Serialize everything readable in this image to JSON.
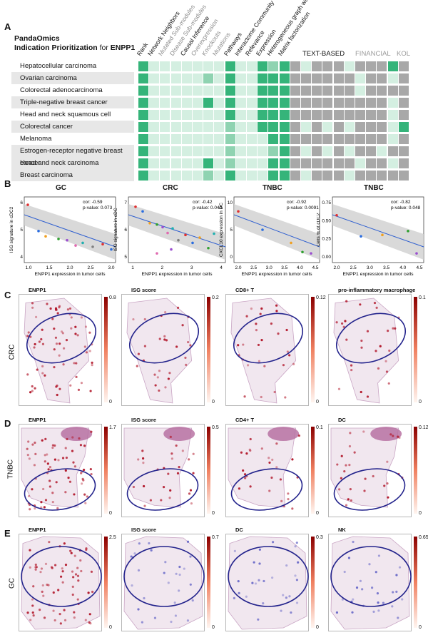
{
  "panelA": {
    "letter": "A",
    "title_line1": "PandaOmics",
    "title_line2_prefix": "Indication Prioritization",
    "title_line2_mid": " for ",
    "title_line2_gene": "ENPP1",
    "columns": [
      {
        "label": "Rank",
        "grey": false
      },
      {
        "label": "Network Neighbors",
        "grey": false
      },
      {
        "label": "Mutated Sub-modules",
        "grey": true
      },
      {
        "label": "Disease Sub-modules",
        "grey": true
      },
      {
        "label": "Causal Inference",
        "grey": false
      },
      {
        "label": "Overexpression",
        "grey": true
      },
      {
        "label": "Knockouts",
        "grey": true
      },
      {
        "label": "Mutations",
        "grey": true
      },
      {
        "label": "Pathways",
        "grey": false
      },
      {
        "label": "Interactome Community",
        "grey": false
      },
      {
        "label": "Relevance",
        "grey": false
      },
      {
        "label": "Expression",
        "grey": false
      },
      {
        "label": "Heterogeneous graph walk",
        "grey": false
      },
      {
        "label": "Matrix factorization",
        "grey": false
      }
    ],
    "groups": [
      {
        "label": "TEXT-BASED",
        "grey": false
      },
      {
        "label": "FINANCIAL",
        "grey": true
      },
      {
        "label": "KOL",
        "grey": true
      }
    ],
    "rows": [
      "Hepatocellular carcinoma",
      "Ovarian carcinoma",
      "Colorectal adenocarcinoma",
      "Triple-negative breast cancer",
      "Head and neck squamous cell carcinoma",
      "Colorectal cancer",
      "Melanoma",
      "Estrogen-receptor negative breast cancer",
      "Head and neck carcinoma",
      "Breast carcinoma"
    ],
    "cell_levels": [
      [
        3,
        1,
        1,
        1,
        1,
        1,
        1,
        1,
        3,
        1,
        1,
        3,
        2,
        3,
        0,
        1,
        0,
        0,
        0,
        1,
        0,
        0,
        0,
        3,
        0
      ],
      [
        3,
        1,
        1,
        1,
        1,
        1,
        2,
        1,
        3,
        1,
        1,
        3,
        3,
        3,
        0,
        0,
        0,
        0,
        0,
        0,
        1,
        0,
        0,
        1,
        0
      ],
      [
        3,
        1,
        1,
        1,
        1,
        1,
        1,
        1,
        3,
        1,
        1,
        3,
        3,
        3,
        0,
        0,
        0,
        0,
        0,
        0,
        1,
        0,
        0,
        0,
        0
      ],
      [
        3,
        1,
        1,
        1,
        1,
        1,
        3,
        1,
        3,
        1,
        1,
        3,
        3,
        3,
        0,
        0,
        0,
        0,
        0,
        0,
        0,
        0,
        0,
        1,
        0
      ],
      [
        3,
        1,
        1,
        1,
        1,
        1,
        1,
        1,
        3,
        1,
        1,
        3,
        3,
        3,
        0,
        0,
        0,
        0,
        0,
        0,
        0,
        0,
        0,
        1,
        0
      ],
      [
        3,
        1,
        1,
        1,
        1,
        1,
        1,
        1,
        2,
        1,
        1,
        3,
        3,
        3,
        0,
        1,
        0,
        1,
        0,
        1,
        0,
        0,
        0,
        1,
        3
      ],
      [
        3,
        1,
        1,
        1,
        1,
        1,
        1,
        1,
        2,
        1,
        1,
        1,
        3,
        3,
        0,
        0,
        0,
        0,
        0,
        0,
        0,
        0,
        0,
        1,
        0
      ],
      [
        3,
        1,
        1,
        1,
        1,
        1,
        1,
        1,
        2,
        1,
        1,
        1,
        2,
        3,
        0,
        1,
        0,
        1,
        0,
        1,
        0,
        0,
        1,
        0,
        0
      ],
      [
        3,
        1,
        1,
        1,
        1,
        1,
        3,
        1,
        2,
        1,
        1,
        1,
        3,
        3,
        0,
        0,
        0,
        0,
        0,
        0,
        1,
        0,
        0,
        1,
        0
      ],
      [
        3,
        1,
        1,
        1,
        1,
        1,
        2,
        1,
        3,
        1,
        1,
        1,
        3,
        3,
        0,
        1,
        0,
        0,
        0,
        1,
        0,
        0,
        0,
        0,
        0
      ]
    ],
    "level_colors": [
      "#a8a8a8",
      "#d4efe1",
      "#8fd3b1",
      "#35b47a"
    ]
  },
  "panelB": {
    "letter": "B",
    "plots": [
      {
        "title": "GC",
        "ylabel": "ISG signature in cDC2",
        "xlabel": "ENPP1 expression in tumor cells",
        "cor": "cor: -0.59",
        "pval": "p-value: 0.073",
        "xticks": [
          "1.0",
          "1.5",
          "2.0",
          "2.5",
          "3.0"
        ],
        "yticks": [
          "4",
          "5",
          "6"
        ]
      },
      {
        "title": "CRC",
        "ylabel": "ISG signature in cDC",
        "xlabel": "ENPP1 expression in tumor cells",
        "cor": "cor: -0.42",
        "pval": "p-value: 0.049",
        "xticks": [
          "1",
          "2",
          "3",
          "4"
        ],
        "yticks": [
          "5",
          "6",
          "7"
        ]
      },
      {
        "title": "TNBC",
        "ylabel": "CXCL10 expression in DC",
        "xlabel": "ENPP1 expression in tumor cells",
        "cor": "cor: -0.92",
        "pval": "p-value: 0.0091",
        "xticks": [
          "2.0",
          "2.5",
          "3.0",
          "3.5",
          "4.0",
          "4.5"
        ],
        "yticks": [
          "0",
          "5",
          "10"
        ]
      },
      {
        "title": "TNBC",
        "ylabel": "Cells % of cDC2",
        "xlabel": "ENPP1 expression in tumor cells",
        "cor": "cor: -0.82",
        "pval": "p-value: 0.048",
        "xticks": [
          "2.0",
          "2.5",
          "3.0",
          "3.5",
          "4.0",
          "4.5"
        ],
        "yticks": [
          "0.00",
          "0.25",
          "0.50",
          "0.75"
        ]
      }
    ]
  },
  "panelC": {
    "letter": "C",
    "row_label": "CRC",
    "maps": [
      {
        "title": "ENPP1",
        "cmax": "0.8",
        "cmin": "0"
      },
      {
        "title": "ISG score",
        "cmax": "0.2",
        "cmin": "0"
      },
      {
        "title": "CD8+ T",
        "cmax": "0.12",
        "cmin": "0"
      },
      {
        "title": "pro-inflammatory macrophage",
        "cmax": "0.1",
        "cmin": "0"
      }
    ]
  },
  "panelD": {
    "letter": "D",
    "row_label": "TNBC",
    "maps": [
      {
        "title": "ENPP1",
        "cmax": "1.7",
        "cmin": "0"
      },
      {
        "title": "ISG score",
        "cmax": "0.5",
        "cmin": "0"
      },
      {
        "title": "CD4+ T",
        "cmax": "0.1",
        "cmin": "0"
      },
      {
        "title": "DC",
        "cmax": "0.12",
        "cmin": "0"
      }
    ]
  },
  "panelE": {
    "letter": "E",
    "row_label": "GC",
    "maps": [
      {
        "title": "ENPP1",
        "cmax": "2.5",
        "cmin": "0"
      },
      {
        "title": "ISG score",
        "cmax": "0.7",
        "cmin": "0"
      },
      {
        "title": "DC",
        "cmax": "0.3",
        "cmin": "0"
      },
      {
        "title": "NK",
        "cmax": "0.65",
        "cmin": "0"
      }
    ]
  }
}
